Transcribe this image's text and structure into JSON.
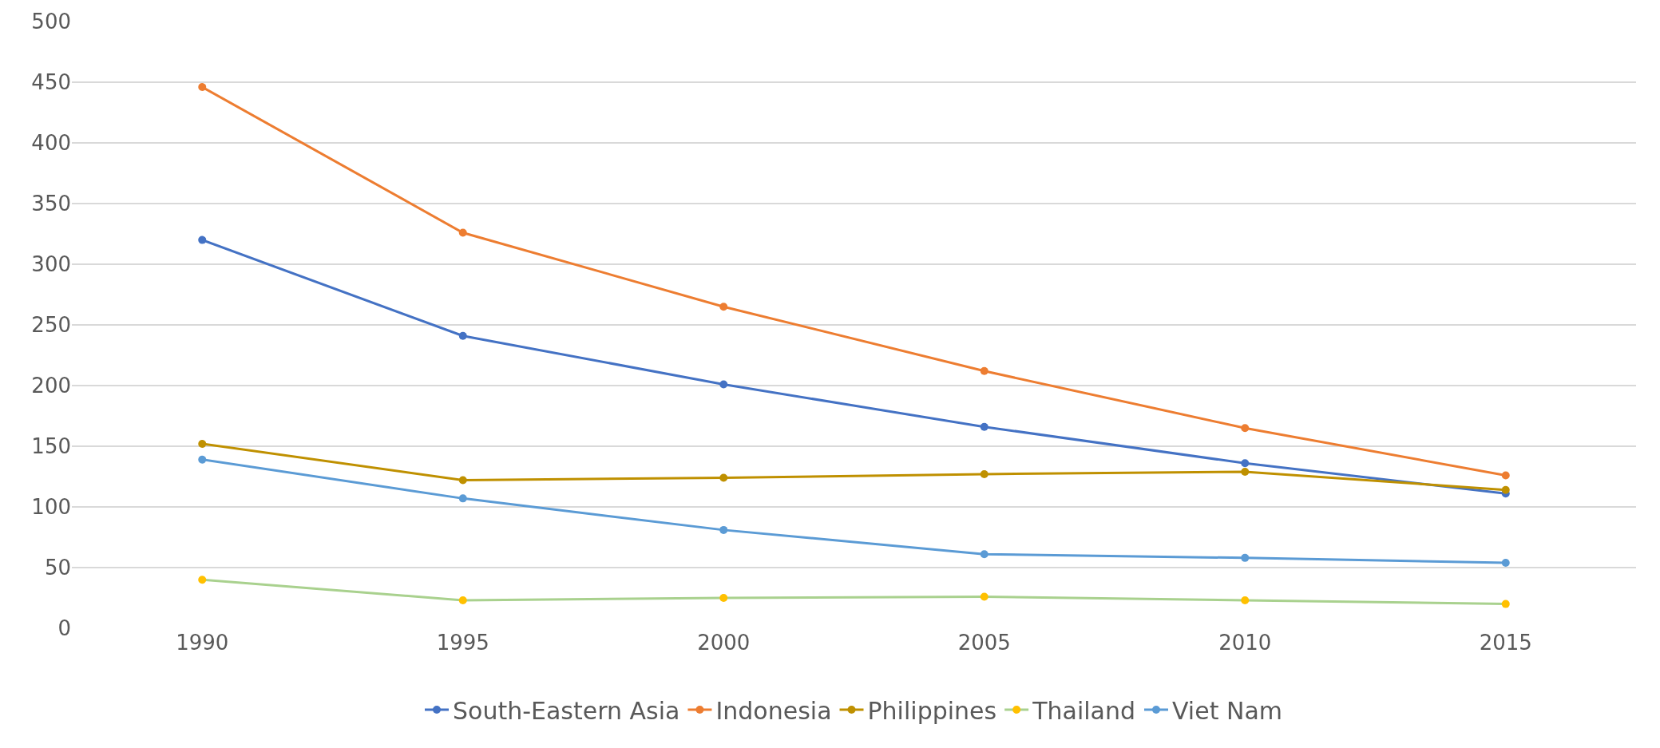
{
  "chart_data": {
    "type": "line",
    "categories": [
      "1990",
      "1995",
      "2000",
      "2005",
      "2010",
      "2015"
    ],
    "series": [
      {
        "name": "South-Eastern Asia",
        "color": "#4472c4",
        "values": [
          320,
          241,
          201,
          166,
          136,
          111
        ]
      },
      {
        "name": "Indonesia",
        "color": "#ed7d31",
        "values": [
          446,
          326,
          265,
          212,
          165,
          126
        ]
      },
      {
        "name": "Philippines",
        "color": "#bf9000",
        "values": [
          152,
          122,
          124,
          127,
          129,
          114
        ]
      },
      {
        "name": "Thailand",
        "color": "#a9d18e",
        "colors": [
          "#ffc000",
          "#ffc000",
          "#ffc000",
          "#ffc000",
          "#ffc000",
          "#ffc000"
        ],
        "values": [
          40,
          23,
          25,
          26,
          23,
          20
        ]
      },
      {
        "name": "Viet Nam",
        "color": "#5b9bd5",
        "values": [
          139,
          107,
          81,
          61,
          58,
          54
        ]
      }
    ],
    "ylim": [
      0,
      500
    ],
    "yticks": [
      0,
      50,
      100,
      150,
      200,
      250,
      300,
      350,
      400,
      450,
      500
    ],
    "grid": "y",
    "legend": "bottom",
    "marker": "circle",
    "line_style": "solid"
  }
}
